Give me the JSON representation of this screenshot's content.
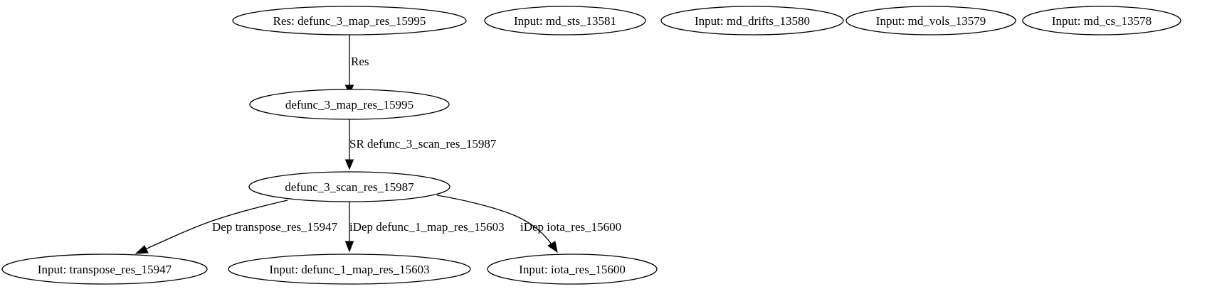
{
  "nodes": {
    "res_root": "Res: defunc_3_map_res_15995",
    "input_md_sts": "Input: md_sts_13581",
    "input_md_drifts": "Input: md_drifts_13580",
    "input_md_vols": "Input: md_vols_13579",
    "input_md_cs": "Input: md_cs_13578",
    "map_res": "defunc_3_map_res_15995",
    "scan_res": "defunc_3_scan_res_15987",
    "input_transpose": "Input: transpose_res_15947",
    "input_defunc_1_map": "Input: defunc_1_map_res_15603",
    "input_iota": "Input: iota_res_15600"
  },
  "edges": {
    "res_to_map": "Res",
    "map_to_scan": "SR defunc_3_scan_res_15987",
    "scan_to_transpose": "Dep transpose_res_15947",
    "scan_to_defunc_1_map": "iDep defunc_1_map_res_15603",
    "scan_to_iota": "iDep iota_res_15600"
  }
}
